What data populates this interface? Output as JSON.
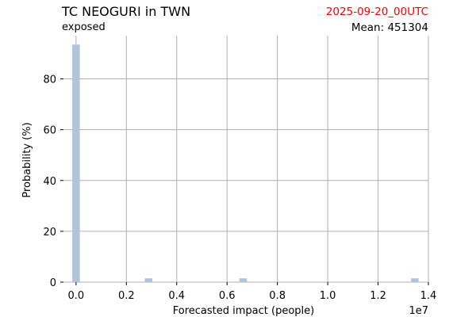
{
  "header": {
    "title": "TC NEOGURI in TWN",
    "subtitle": "exposed",
    "date": "2025-09-20_00UTC",
    "mean": "Mean: 451304"
  },
  "colors": {
    "bar": "#b0c4de",
    "grid": "#b0b0b0",
    "date": "#ff0000"
  },
  "chart_data": {
    "type": "bar",
    "title": "TC NEOGURI in TWN",
    "xlabel": "Forecasted impact (people)",
    "ylabel": "Probability (%)",
    "x_offset_label": "1e7",
    "xlim": [
      -0.05,
      1.4
    ],
    "ylim": [
      0,
      97
    ],
    "xticks": [
      0.0,
      0.2,
      0.4,
      0.6,
      0.8,
      1.0,
      1.2,
      1.4
    ],
    "xtick_labels": [
      "0.0",
      "0.2",
      "0.4",
      "0.6",
      "0.8",
      "1.0",
      "1.2",
      "1.4"
    ],
    "yticks": [
      0,
      20,
      40,
      60,
      80
    ],
    "ytick_labels": [
      "0",
      "20",
      "40",
      "60",
      "80"
    ],
    "bin_width": 0.034,
    "bars": [
      {
        "x": 0.0,
        "value": 93.5
      },
      {
        "x": 0.288,
        "value": 1.5
      },
      {
        "x": 0.664,
        "value": 1.5
      },
      {
        "x": 1.346,
        "value": 1.5
      }
    ],
    "grid": true
  }
}
